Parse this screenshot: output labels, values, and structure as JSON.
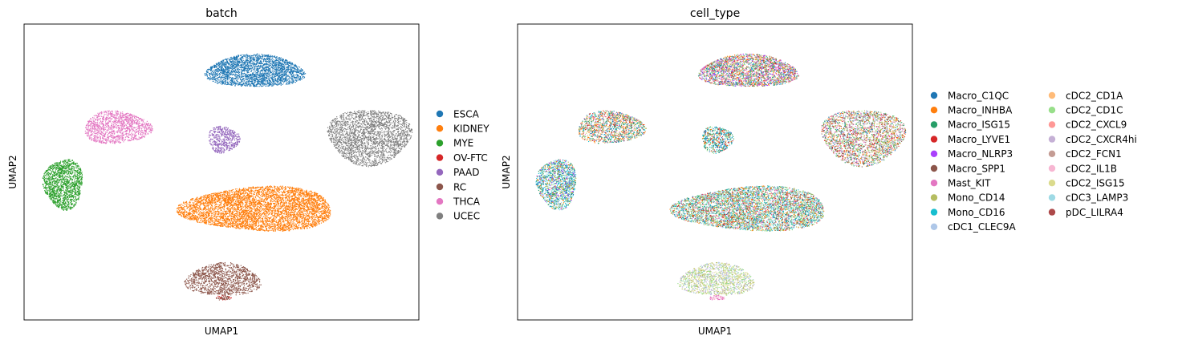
{
  "chart_data": [
    {
      "type": "scatter",
      "title": "batch",
      "xlabel": "UMAP1",
      "ylabel": "UMAP2",
      "grid": false,
      "ticks": "none",
      "legend": "right",
      "xlim": [
        0,
        100
      ],
      "ylim": [
        0,
        100
      ],
      "series": [
        {
          "name": "ESCA",
          "color": "#1f77b4"
        },
        {
          "name": "KIDNEY",
          "color": "#ff7f0e"
        },
        {
          "name": "MYE",
          "color": "#2ca02c"
        },
        {
          "name": "OV-FTC",
          "color": "#d62728"
        },
        {
          "name": "PAAD",
          "color": "#9467bd"
        },
        {
          "name": "RC",
          "color": "#8c564b"
        },
        {
          "name": "THCA",
          "color": "#e377c2"
        },
        {
          "name": "UCEC",
          "color": "#7f7f7f"
        }
      ],
      "clusters": [
        {
          "label": "ESCA",
          "cx": 58.5,
          "cy": 84,
          "rx": 12.5,
          "ry": 5.5,
          "n": 2600,
          "mix": {
            "ESCA": 1
          }
        },
        {
          "label": "THCA",
          "cx": 23.5,
          "cy": 65,
          "rx": 8.5,
          "ry": 5.5,
          "n": 1300,
          "mix": {
            "THCA": 1
          }
        },
        {
          "label": "PAAD",
          "cx": 50.5,
          "cy": 61,
          "rx": 4.0,
          "ry": 4.5,
          "n": 500,
          "mix": {
            "PAAD": 1
          }
        },
        {
          "label": "UCEC",
          "cx": 87.5,
          "cy": 62,
          "rx": 10.5,
          "ry": 9.5,
          "n": 2500,
          "mix": {
            "UCEC": 1
          }
        },
        {
          "label": "MYE",
          "cx": 10.0,
          "cy": 46,
          "rx": 5.0,
          "ry": 8.5,
          "n": 1500,
          "mix": {
            "MYE": 1
          }
        },
        {
          "label": "KIDNEY",
          "cx": 59.5,
          "cy": 37.5,
          "rx": 19.5,
          "ry": 7.5,
          "n": 5200,
          "mix": {
            "KIDNEY": 1
          }
        },
        {
          "label": "RC",
          "cx": 50.5,
          "cy": 13.5,
          "rx": 9.5,
          "ry": 5.5,
          "n": 1300,
          "mix": {
            "RC": 1
          }
        },
        {
          "label": "OV-FTC",
          "cx": 50.5,
          "cy": 7.5,
          "rx": 2.0,
          "ry": 0.8,
          "n": 70,
          "mix": {
            "OV-FTC": 0.4,
            "RC": 0.6
          }
        }
      ]
    },
    {
      "type": "scatter",
      "title": "cell_type",
      "xlabel": "UMAP1",
      "ylabel": "UMAP2",
      "grid": false,
      "ticks": "none",
      "legend": "right, two columns",
      "xlim": [
        0,
        100
      ],
      "ylim": [
        0,
        100
      ],
      "series": [
        {
          "name": "Macro_C1QC",
          "color": "#1f77b4"
        },
        {
          "name": "Macro_INHBA",
          "color": "#ff7f0e"
        },
        {
          "name": "Macro_ISG15",
          "color": "#279e68"
        },
        {
          "name": "Macro_LYVE1",
          "color": "#d62728"
        },
        {
          "name": "Macro_NLRP3",
          "color": "#aa40fc"
        },
        {
          "name": "Macro_SPP1",
          "color": "#8c564b"
        },
        {
          "name": "Mast_KIT",
          "color": "#e377c2"
        },
        {
          "name": "Mono_CD14",
          "color": "#b5bd61"
        },
        {
          "name": "Mono_CD16",
          "color": "#17becf"
        },
        {
          "name": "cDC1_CLEC9A",
          "color": "#aec7e8"
        },
        {
          "name": "cDC2_CD1A",
          "color": "#ffbb78"
        },
        {
          "name": "cDC2_CD1C",
          "color": "#98df8a"
        },
        {
          "name": "cDC2_CXCL9",
          "color": "#ff9896"
        },
        {
          "name": "cDC2_CXCR4hi",
          "color": "#c5b0d5"
        },
        {
          "name": "cDC2_FCN1",
          "color": "#c49c94"
        },
        {
          "name": "cDC2_IL1B",
          "color": "#f7b6d2"
        },
        {
          "name": "cDC2_ISG15",
          "color": "#dbdb8d"
        },
        {
          "name": "cDC3_LAMP3",
          "color": "#9edae5"
        },
        {
          "name": "pDC_LILRA4",
          "color": "#ad494a"
        }
      ],
      "clusters": [
        {
          "cx": 58.5,
          "cy": 84,
          "rx": 12.5,
          "ry": 5.5,
          "n": 2600,
          "mix": {
            "Macro_C1QC": 1,
            "Macro_INHBA": 1.3,
            "Macro_ISG15": 1,
            "Macro_LYVE1": 1,
            "Macro_NLRP3": 1,
            "Mast_KIT": 1,
            "Mono_CD14": 0.6,
            "Mono_CD16": 0.4,
            "cDC2_CD1C": 0.5,
            "cDC2_FCN1": 0.5
          }
        },
        {
          "cx": 23.5,
          "cy": 65,
          "rx": 8.5,
          "ry": 5.5,
          "n": 1300,
          "mix": {
            "Macro_INHBA": 1.6,
            "Macro_C1QC": 1,
            "Macro_ISG15": 1,
            "Mono_CD14": 0.8,
            "Mono_CD16": 0.6,
            "Macro_LYVE1": 0.5,
            "Mast_KIT": 0.5,
            "cDC2_ISG15": 0.5
          }
        },
        {
          "cx": 50.5,
          "cy": 61,
          "rx": 4.0,
          "ry": 4.5,
          "n": 500,
          "mix": {
            "Macro_C1QC": 1.5,
            "Macro_ISG15": 1,
            "Macro_INHBA": 0.6,
            "Mono_CD16": 0.8,
            "cDC2_CD1C": 0.5,
            "Macro_LYVE1": 0.4
          }
        },
        {
          "cx": 87.5,
          "cy": 62,
          "rx": 10.5,
          "ry": 9.5,
          "n": 2500,
          "mix": {
            "Macro_C1QC": 1,
            "Macro_INHBA": 1,
            "Macro_ISG15": 1,
            "Macro_LYVE1": 1,
            "Mast_KIT": 1,
            "Mono_CD14": 1,
            "cDC2_CD1C": 1,
            "cDC2_CXCR4hi": 1,
            "Macro_SPP1": 0.6
          }
        },
        {
          "cx": 10.0,
          "cy": 46,
          "rx": 5.0,
          "ry": 8.5,
          "n": 1500,
          "mix": {
            "Mono_CD16": 1.5,
            "cDC3_LAMP3": 1.5,
            "Macro_ISG15": 1,
            "Mono_CD14": 0.8,
            "Macro_C1QC": 0.6,
            "Macro_INHBA": 0.5,
            "Macro_NLRP3": 0.4
          }
        },
        {
          "cx": 59.5,
          "cy": 37.5,
          "rx": 19.5,
          "ry": 7.5,
          "n": 5200,
          "mix": {
            "Macro_ISG15": 1.5,
            "Mono_CD16": 1.2,
            "Macro_C1QC": 1,
            "cDC2_CD1C": 1,
            "Mono_CD14": 1,
            "Macro_INHBA": 0.8,
            "Macro_LYVE1": 0.6,
            "Mast_KIT": 0.6,
            "cDC3_LAMP3": 0.8
          }
        },
        {
          "cx": 50.5,
          "cy": 13.5,
          "rx": 9.5,
          "ry": 5.5,
          "n": 1300,
          "mix": {
            "cDC2_ISG15": 1.5,
            "Mono_CD14": 1,
            "cDC2_CD1C": 1,
            "cDC1_CLEC9A": 0.8,
            "cDC2_CXCR4hi": 0.5
          }
        },
        {
          "cx": 50.5,
          "cy": 7.5,
          "rx": 2.0,
          "ry": 0.8,
          "n": 70,
          "mix": {
            "cDC2_IL1B": 1,
            "Mast_KIT": 0.4
          }
        }
      ]
    }
  ]
}
